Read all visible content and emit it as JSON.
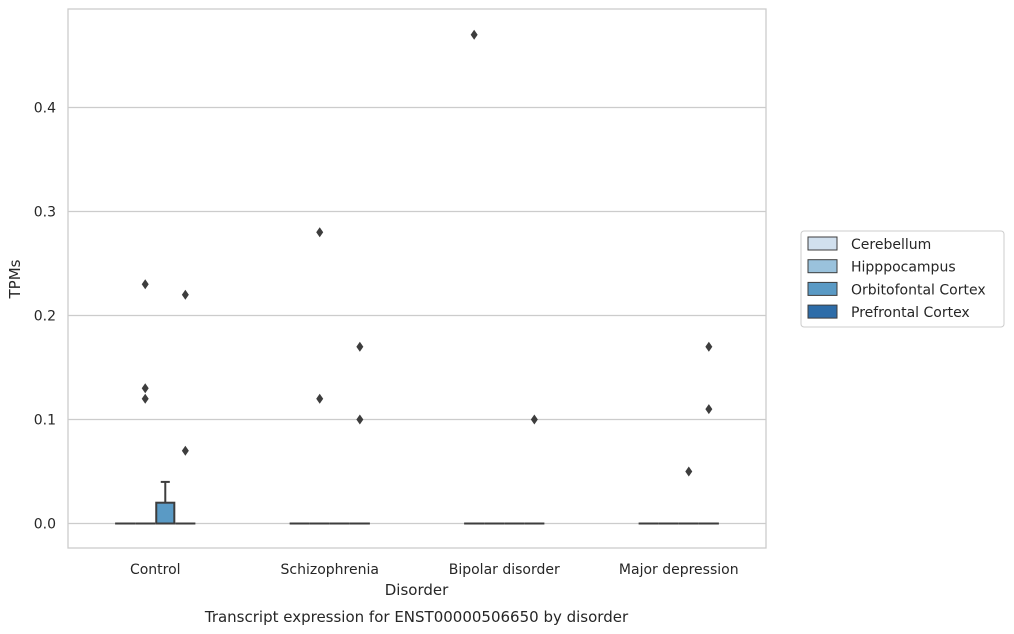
{
  "chart_data": {
    "type": "box",
    "xlabel": "Disorder",
    "ylabel": "TPMs",
    "caption": "Transcript expression for ENST00000506650 by disorder",
    "categories": [
      "Control",
      "Schizophrenia",
      "Bipolar disorder",
      "Major depression"
    ],
    "ylim": [
      -0.023,
      0.49
    ],
    "yticks": [
      0.0,
      0.1,
      0.2,
      0.3,
      0.4
    ],
    "ytick_labels": [
      "0.0",
      "0.1",
      "0.2",
      "0.3",
      "0.4"
    ],
    "grid": "horizontal",
    "legend_position": "right",
    "series": [
      {
        "name": "Cerebellum",
        "color": "#d1e0ee",
        "boxes": [
          {
            "q1": 0,
            "median": 0,
            "q3": 0,
            "whisker_low": 0,
            "whisker_high": 0,
            "outliers": []
          },
          {
            "q1": 0,
            "median": 0,
            "q3": 0,
            "whisker_low": 0,
            "whisker_high": 0,
            "outliers": []
          },
          {
            "q1": 0,
            "median": 0,
            "q3": 0,
            "whisker_low": 0,
            "whisker_high": 0,
            "outliers": [
              0.47
            ]
          },
          {
            "q1": 0,
            "median": 0,
            "q3": 0,
            "whisker_low": 0,
            "whisker_high": 0,
            "outliers": []
          }
        ]
      },
      {
        "name": "Hipppocampus",
        "color": "#9ac2dc",
        "boxes": [
          {
            "q1": 0,
            "median": 0,
            "q3": 0,
            "whisker_low": 0,
            "whisker_high": 0,
            "outliers": [
              0.23,
              0.13,
              0.12
            ]
          },
          {
            "q1": 0,
            "median": 0,
            "q3": 0,
            "whisker_low": 0,
            "whisker_high": 0,
            "outliers": [
              0.28,
              0.12
            ]
          },
          {
            "q1": 0,
            "median": 0,
            "q3": 0,
            "whisker_low": 0,
            "whisker_high": 0,
            "outliers": []
          },
          {
            "q1": 0,
            "median": 0,
            "q3": 0,
            "whisker_low": 0,
            "whisker_high": 0,
            "outliers": []
          }
        ]
      },
      {
        "name": "Orbitofontal Cortex",
        "color": "#5a9ac5",
        "boxes": [
          {
            "q1": 0,
            "median": 0,
            "q3": 0.02,
            "whisker_low": 0,
            "whisker_high": 0.04,
            "outliers": []
          },
          {
            "q1": 0,
            "median": 0,
            "q3": 0,
            "whisker_low": 0,
            "whisker_high": 0,
            "outliers": []
          },
          {
            "q1": 0,
            "median": 0,
            "q3": 0,
            "whisker_low": 0,
            "whisker_high": 0,
            "outliers": []
          },
          {
            "q1": 0,
            "median": 0,
            "q3": 0,
            "whisker_low": 0,
            "whisker_high": 0,
            "outliers": [
              0.05
            ]
          }
        ]
      },
      {
        "name": "Prefrontal Cortex",
        "color": "#2d6ca8",
        "boxes": [
          {
            "q1": 0,
            "median": 0,
            "q3": 0,
            "whisker_low": 0,
            "whisker_high": 0,
            "outliers": [
              0.22,
              0.07
            ]
          },
          {
            "q1": 0,
            "median": 0,
            "q3": 0,
            "whisker_low": 0,
            "whisker_high": 0,
            "outliers": [
              0.17,
              0.1
            ]
          },
          {
            "q1": 0,
            "median": 0,
            "q3": 0,
            "whisker_low": 0,
            "whisker_high": 0,
            "outliers": [
              0.1
            ]
          },
          {
            "q1": 0,
            "median": 0,
            "q3": 0,
            "whisker_low": 0,
            "whisker_high": 0,
            "outliers": [
              0.17,
              0.11
            ]
          }
        ]
      }
    ]
  }
}
